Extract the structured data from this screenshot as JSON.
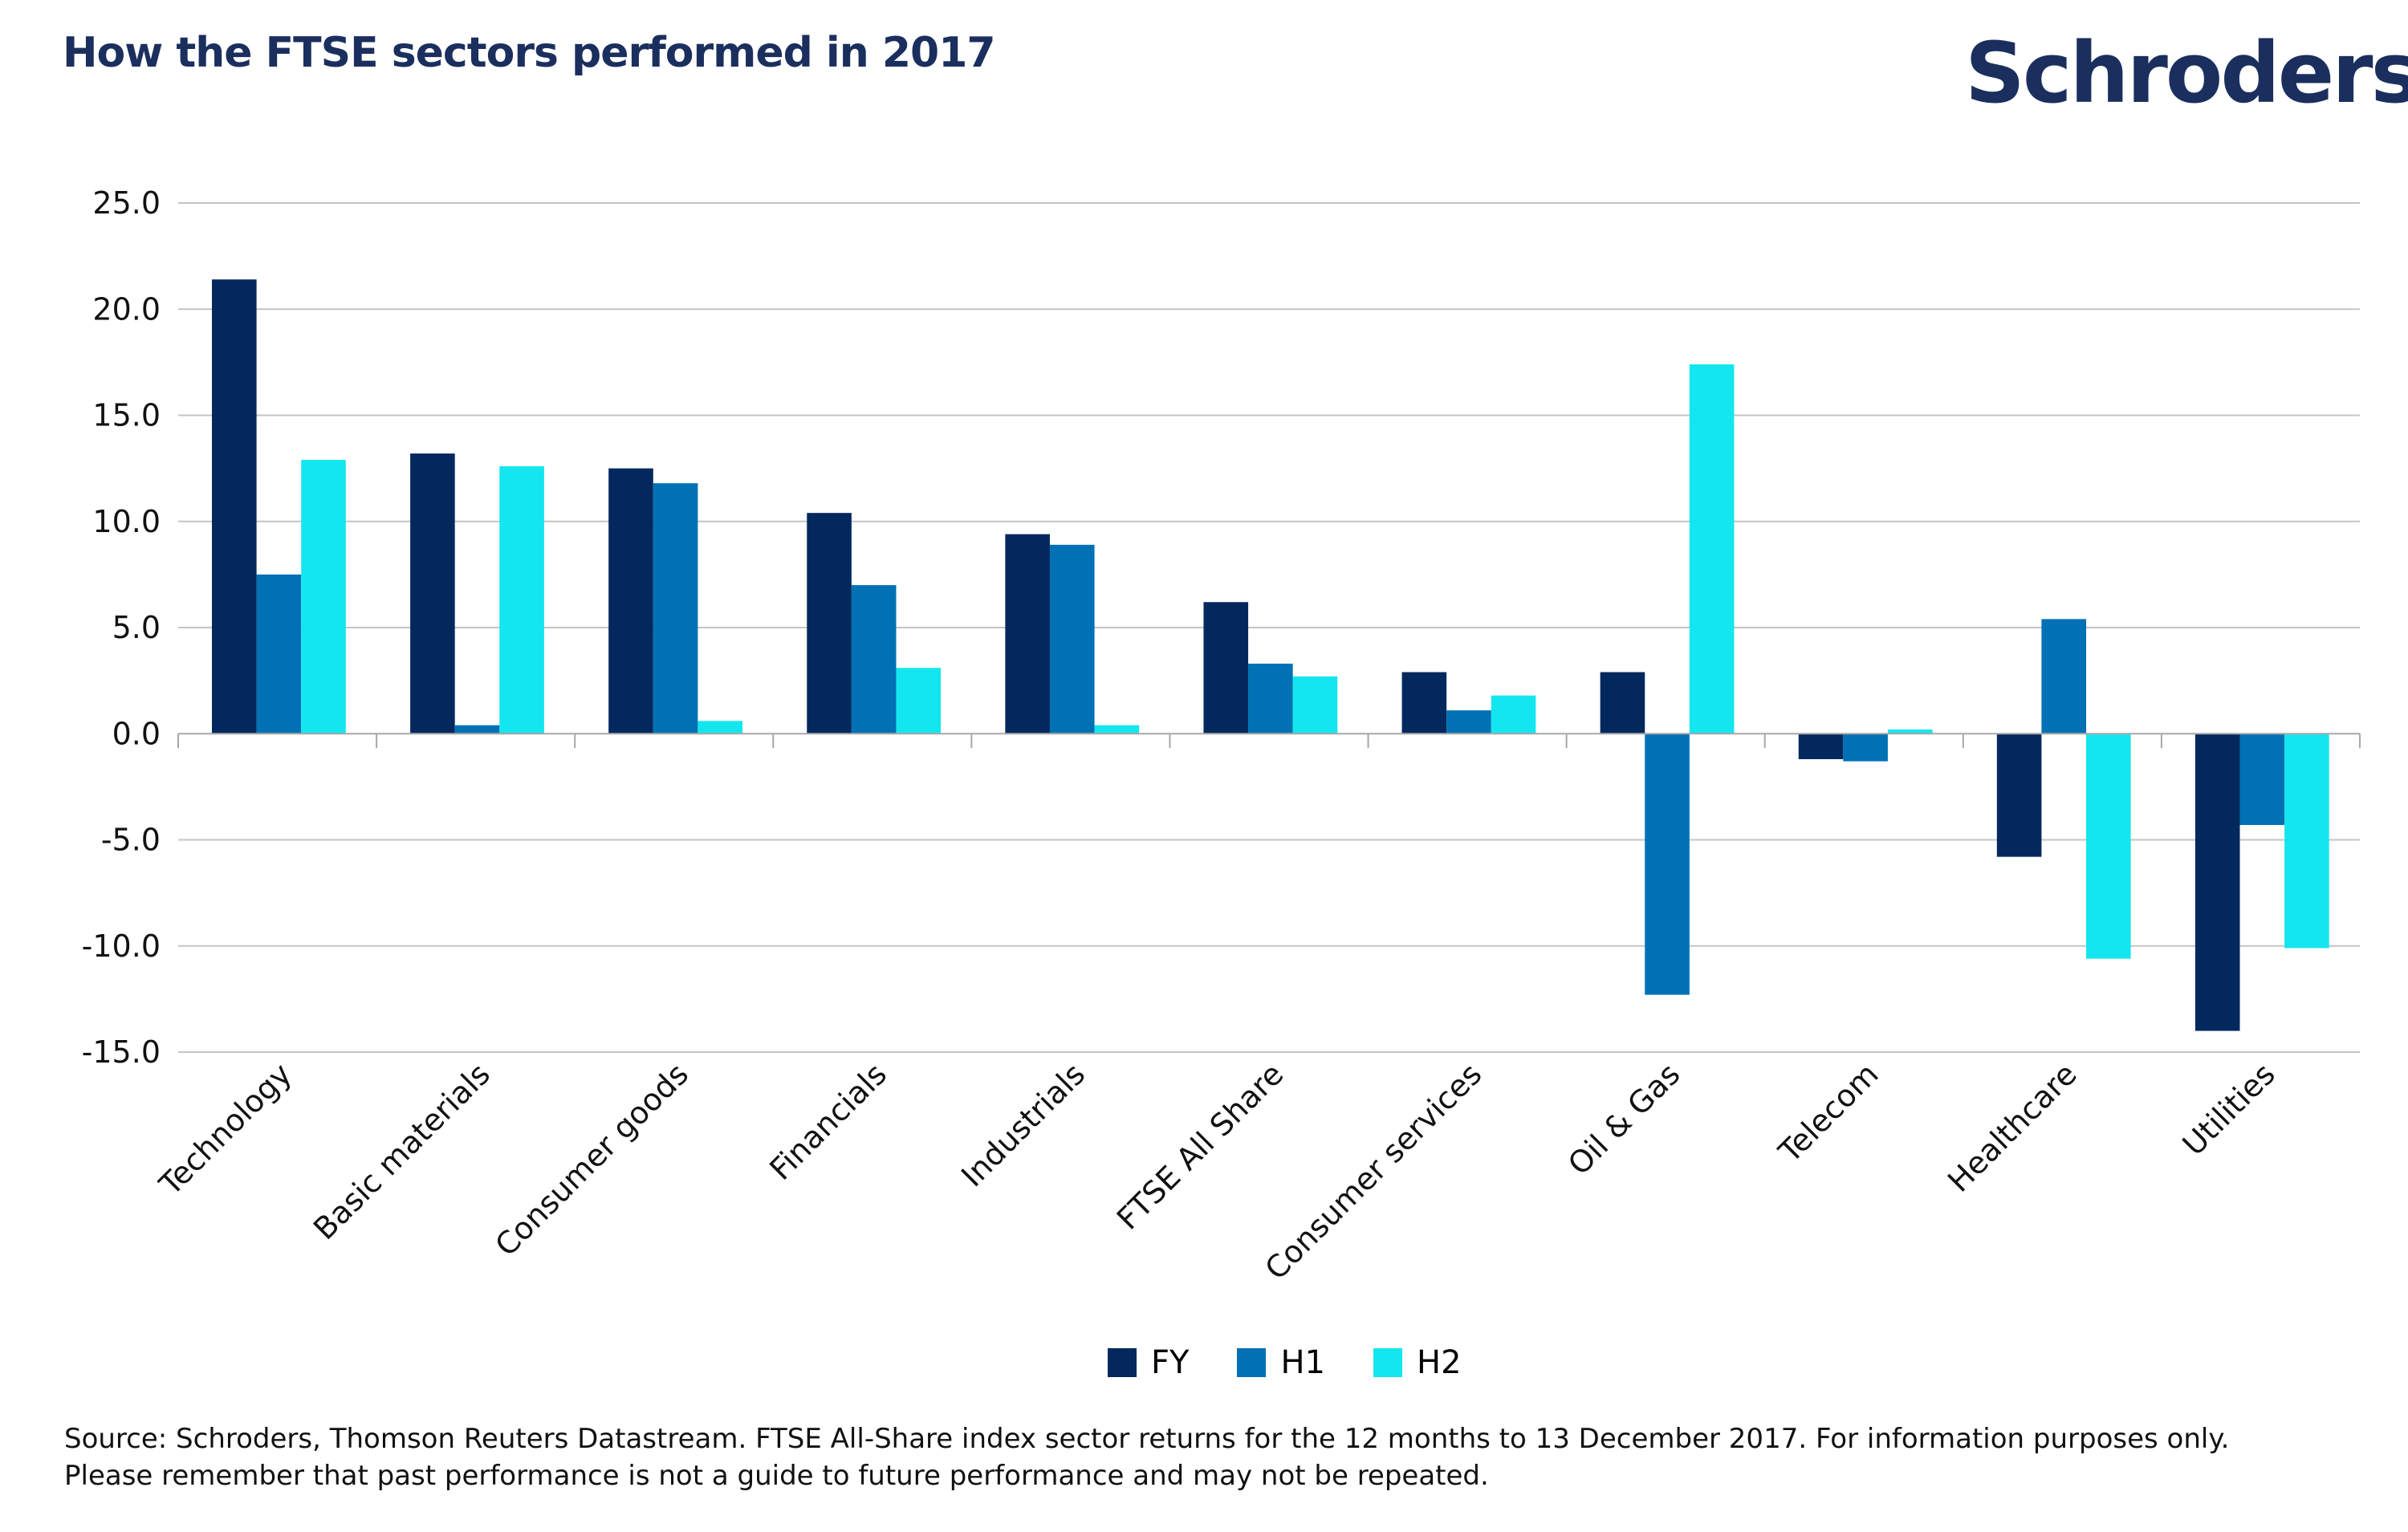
{
  "header": {
    "title": "How the FTSE sectors performed in 2017",
    "logo_text": "Schroders",
    "brand_color": "#1b2f5e"
  },
  "chart_data": {
    "type": "bar",
    "title": "How the FTSE sectors performed in 2017",
    "xlabel": "",
    "ylabel": "",
    "ylim": [
      -15,
      25
    ],
    "yticks": [
      25,
      20,
      15,
      10,
      5,
      0,
      -5,
      -10,
      -15
    ],
    "ytick_labels": [
      "25.0",
      "20.0",
      "15.0",
      "10.0",
      "5.0",
      "0.0",
      "-5.0",
      "-10.0",
      "-15.0"
    ],
    "grid": true,
    "legend_position": "bottom",
    "categories": [
      "Technology",
      "Basic materials",
      "Consumer goods",
      "Financials",
      "Industrials",
      "FTSE All Share",
      "Consumer services",
      "Oil & Gas",
      "Telecom",
      "Healthcare",
      "Utilities"
    ],
    "series": [
      {
        "name": "FY",
        "color": "#03285e",
        "values": [
          21.4,
          13.2,
          12.5,
          10.4,
          9.4,
          6.2,
          2.9,
          2.9,
          -1.2,
          -5.8,
          -14.0
        ]
      },
      {
        "name": "H1",
        "color": "#0071b4",
        "values": [
          7.5,
          0.4,
          11.8,
          7.0,
          8.9,
          3.3,
          1.1,
          -12.3,
          -1.3,
          5.4,
          -4.3
        ]
      },
      {
        "name": "H2",
        "color": "#13e6ef",
        "values": [
          12.9,
          12.6,
          0.6,
          3.1,
          0.4,
          2.7,
          1.8,
          17.4,
          0.2,
          -10.6,
          -10.1
        ]
      }
    ]
  },
  "footer": {
    "line1": "Source: Schroders, Thomson Reuters Datastream. FTSE All-Share index sector returns for the 12 months to 13 December 2017. For information purposes only.",
    "line2": "Please remember that past performance is not a guide to future performance and may not be repeated."
  }
}
